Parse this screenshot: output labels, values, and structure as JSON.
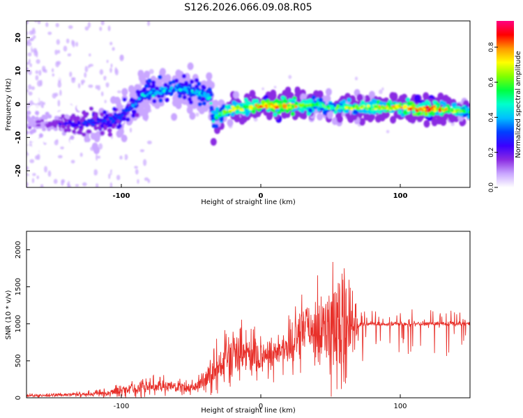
{
  "title": "S126.2026.066.09.08.R05",
  "colors": {
    "snr_line": "#e8302a",
    "background": "#ffffff",
    "axis": "#000000",
    "colormap": [
      "#ffffff",
      "#c9a6ff",
      "#8a2be2",
      "#3a00ff",
      "#0040ff",
      "#00c0ff",
      "#00ffcc",
      "#00ff40",
      "#80ff00",
      "#ffff00",
      "#ff9900",
      "#ff0000",
      "#ff0080"
    ]
  },
  "chart_data": [
    {
      "type": "heatmap",
      "title": "S126.2026.066.09.08.R05",
      "xlabel": "Height of straight line (km)",
      "ylabel": "Frequency (Hz)",
      "xlim": [
        -168,
        150
      ],
      "ylim": [
        -25,
        25
      ],
      "xticks": [
        -100,
        0,
        100
      ],
      "yticks": [
        -20,
        -10,
        0,
        10,
        20
      ],
      "colorbar": {
        "label": "Normalized spectral amplitude",
        "range": [
          0,
          0.95
        ],
        "ticks": [
          0.0,
          0.2,
          0.4,
          0.6,
          0.8
        ]
      },
      "ridge": {
        "description": "approximate frequency of peak spectral amplitude vs height",
        "height_km": [
          -168,
          -150,
          -130,
          -110,
          -100,
          -90,
          -85,
          -70,
          -60,
          -50,
          -40,
          -36,
          -34,
          -30,
          -20,
          -10,
          0,
          10,
          20,
          30,
          40,
          50,
          60,
          70,
          80,
          90,
          100,
          110,
          120,
          130,
          140,
          150
        ],
        "frequency_hz": [
          -6,
          -6,
          -6,
          -5,
          -3,
          0,
          3,
          4,
          5,
          4,
          3,
          2,
          -5,
          -3,
          -1.5,
          -1,
          -0.5,
          -0.5,
          -0.5,
          -0.5,
          0,
          -1,
          -1,
          -1,
          -1,
          -1,
          -1,
          -1.5,
          -1.5,
          -1.5,
          -2,
          -2.2
        ],
        "amplitude": [
          0.15,
          0.2,
          0.3,
          0.35,
          0.35,
          0.4,
          0.45,
          0.45,
          0.45,
          0.45,
          0.5,
          0.5,
          0.55,
          0.6,
          0.75,
          0.75,
          0.85,
          0.85,
          0.8,
          0.7,
          0.6,
          0.6,
          0.7,
          0.7,
          0.7,
          0.8,
          0.8,
          0.9,
          0.9,
          0.8,
          0.7,
          0.6
        ]
      }
    },
    {
      "type": "line",
      "xlabel": "Height of straight line (km)",
      "ylabel": "SNR (10 * v/v)",
      "xlim": [
        -168,
        150
      ],
      "ylim": [
        0,
        2250
      ],
      "xticks": [
        -100,
        0,
        100
      ],
      "yticks": [
        0,
        500,
        1000,
        1500,
        2000
      ],
      "series": [
        {
          "name": "SNR",
          "color": "#e8302a",
          "x": [
            -168,
            -150,
            -130,
            -110,
            -100,
            -90,
            -80,
            -70,
            -60,
            -50,
            -45,
            -40,
            -35,
            -30,
            -25,
            -20,
            -15,
            -10,
            -5,
            0,
            5,
            10,
            15,
            20,
            25,
            30,
            35,
            40,
            45,
            50,
            55,
            60,
            65,
            70,
            80,
            90,
            100,
            110,
            120,
            130,
            140,
            150
          ],
          "mean": [
            30,
            35,
            45,
            70,
            100,
            130,
            160,
            160,
            140,
            140,
            170,
            250,
            350,
            450,
            500,
            560,
            600,
            580,
            560,
            560,
            580,
            600,
            640,
            700,
            800,
            900,
            950,
            950,
            980,
            1000,
            1000,
            1000,
            1000,
            980,
            1000,
            990,
            1000,
            1000,
            1000,
            1000,
            1000,
            1000
          ],
          "spread": [
            30,
            30,
            40,
            70,
            100,
            140,
            150,
            150,
            120,
            120,
            150,
            200,
            350,
            400,
            450,
            600,
            550,
            500,
            450,
            350,
            350,
            400,
            400,
            450,
            500,
            600,
            700,
            800,
            900,
            1000,
            1200,
            1300,
            500,
            250,
            180,
            180,
            180,
            200,
            220,
            220,
            200,
            120
          ]
        }
      ]
    }
  ]
}
